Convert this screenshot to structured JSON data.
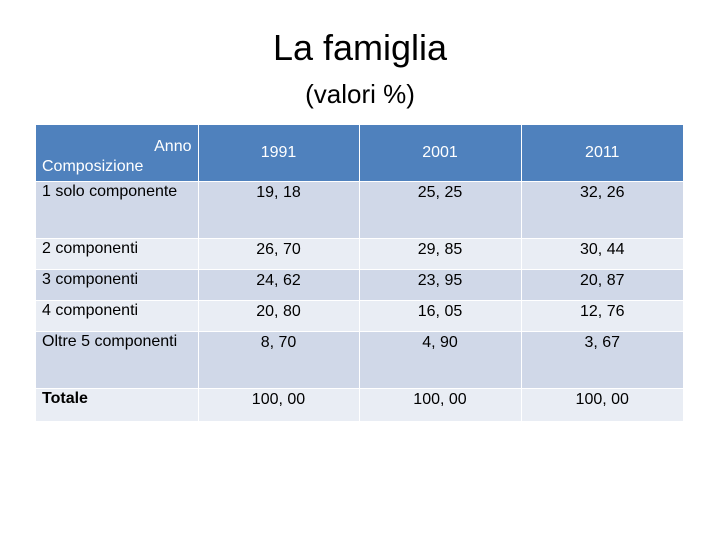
{
  "title": "La famiglia",
  "subtitle": "(valori %)",
  "table": {
    "header": {
      "anno_label": "Anno",
      "composizione_label": "Composizione",
      "years": [
        "1991",
        "2001",
        "2011"
      ]
    },
    "rows": [
      {
        "label": "1 solo componente",
        "values": [
          "19, 18",
          "25, 25",
          "32, 26"
        ]
      },
      {
        "label": "2 componenti",
        "values": [
          "26, 70",
          "29, 85",
          "30, 44"
        ]
      },
      {
        "label": "3 componenti",
        "values": [
          "24, 62",
          "23, 95",
          "20, 87"
        ]
      },
      {
        "label": "4 componenti",
        "values": [
          "20, 80",
          "16, 05",
          "12, 76"
        ]
      },
      {
        "label": "Oltre 5 componenti",
        "values": [
          "8, 70",
          "4, 90",
          "3, 67"
        ]
      },
      {
        "label": "Totale",
        "values": [
          "100, 00",
          "100, 00",
          "100, 00"
        ]
      }
    ]
  },
  "colors": {
    "header": "#4f81bd",
    "row_odd": "#d0d8e8",
    "row_even": "#e9edf4"
  }
}
